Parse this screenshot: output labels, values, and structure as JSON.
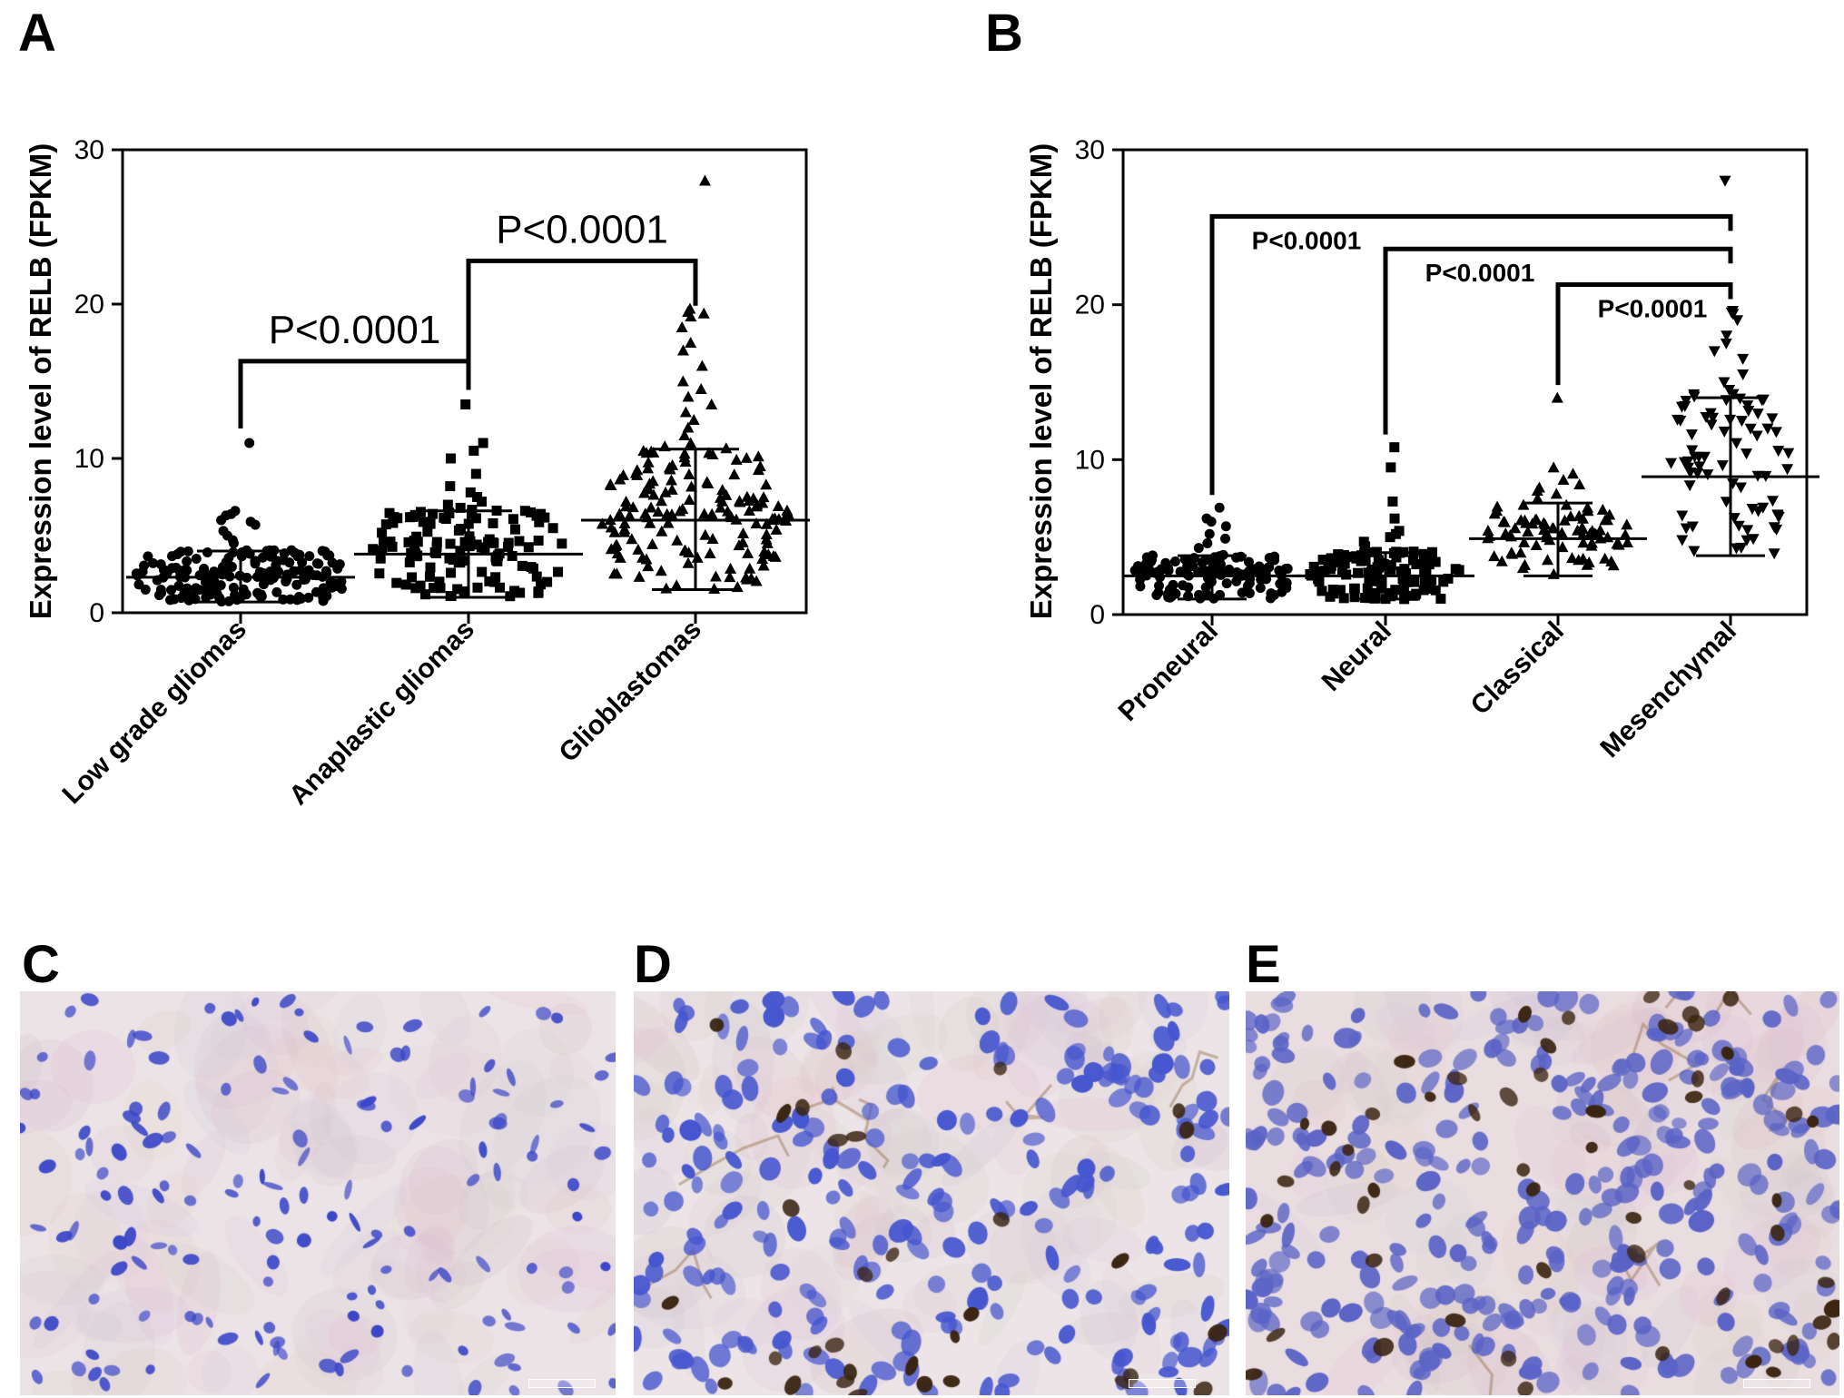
{
  "chart_data": [
    {
      "panel": "A",
      "type": "scatter",
      "ylabel": "Expression level of RELB (FPKM)",
      "ylim": [
        0,
        30
      ],
      "yticks": [
        "0",
        "10",
        "20",
        "30"
      ],
      "categories": [
        "Low grade gliomas",
        "Anaplastic gliomas",
        "Glioblastomas"
      ],
      "markers": [
        "circle",
        "square",
        "triangle-up"
      ],
      "series": [
        {
          "category": "Low grade gliomas",
          "mean": 2.3,
          "sd_low": 0.7,
          "sd_high": 4.0,
          "max": 11.0,
          "notable_points": [
            11.0,
            6.6,
            6.4,
            6.3,
            6.0,
            5.9,
            5.7,
            5.3,
            5.0,
            4.7,
            4.5
          ]
        },
        {
          "category": "Anaplastic gliomas",
          "mean": 3.8,
          "sd_low": 1.0,
          "sd_high": 6.6,
          "max": 13.5,
          "notable_points": [
            13.5,
            11.0,
            10.5,
            10.0,
            9.0,
            8.2,
            7.8,
            7.5,
            7.2,
            7.0,
            6.8,
            6.5
          ]
        },
        {
          "category": "Glioblastomas",
          "mean": 6.0,
          "sd_low": 1.5,
          "sd_high": 10.6,
          "max": 28.0,
          "notable_points": [
            28.0,
            19.7,
            19.5,
            19.4,
            19.2,
            18.5,
            17.5,
            17.0,
            16.0,
            15.0,
            14.5,
            14.0,
            13.5,
            13.0,
            12.5,
            12.0,
            11.5,
            11.0
          ]
        }
      ],
      "comparisons": [
        {
          "from": "Low grade gliomas",
          "to": "Anaplastic gliomas",
          "label": "P<0.0001",
          "level": 16.3
        },
        {
          "from": "Anaplastic gliomas",
          "to": "Glioblastomas",
          "label": "P<0.0001",
          "level": 22.8
        }
      ]
    },
    {
      "panel": "B",
      "type": "scatter",
      "ylabel": "Expression level of RELB (FPKM)",
      "ylim": [
        0,
        30
      ],
      "yticks": [
        "0",
        "10",
        "20",
        "30"
      ],
      "categories": [
        "Proneural",
        "Neural",
        "Classical",
        "Mesenchymal"
      ],
      "markers": [
        "circle",
        "square",
        "triangle-up",
        "triangle-down"
      ],
      "series": [
        {
          "category": "Proneural",
          "mean": 2.5,
          "sd_low": 1.0,
          "sd_high": 3.8,
          "max": 6.9,
          "notable_points": [
            6.9,
            6.2,
            6.0,
            5.7,
            5.2,
            4.9,
            4.6,
            4.3
          ]
        },
        {
          "category": "Neural",
          "mean": 2.5,
          "sd_low": 1.0,
          "sd_high": 4.0,
          "max": 10.8,
          "notable_points": [
            10.8,
            9.5,
            7.3,
            6.2,
            5.4,
            5.2,
            5.0,
            4.7,
            4.4
          ]
        },
        {
          "category": "Classical",
          "mean": 4.9,
          "sd_low": 2.5,
          "sd_high": 7.2,
          "max": 14.0,
          "notable_points": [
            14.0,
            9.5,
            9.1,
            8.7,
            8.4,
            8.2,
            8.0,
            7.8,
            7.5
          ]
        },
        {
          "category": "Mesenchymal",
          "mean": 8.9,
          "sd_low": 3.8,
          "sd_high": 14.0,
          "max": 28.0,
          "notable_points": [
            28.0,
            19.6,
            19.5,
            19.4,
            19.0,
            18.0,
            17.5,
            17.0,
            16.5,
            15.5,
            15.0,
            14.5,
            13.5,
            13.0,
            12.5,
            12.0
          ]
        }
      ],
      "comparisons": [
        {
          "from": "Proneural",
          "to": "Mesenchymal",
          "label": "P<0.0001",
          "level": 25.7
        },
        {
          "from": "Neural",
          "to": "Mesenchymal",
          "label": "P<0.0001",
          "level": 23.6
        },
        {
          "from": "Classical",
          "to": "Mesenchymal",
          "label": "P<0.0001",
          "level": 21.3
        }
      ]
    }
  ],
  "panels": {
    "a": "A",
    "b": "B",
    "c": "C",
    "d": "D",
    "e": "E"
  },
  "micrographs": [
    {
      "panel": "C",
      "stain": "hematoxylin + DAB",
      "brown_nuclei": "none",
      "colors": {
        "background": "#ece3e6",
        "nucleus": "#3b47c8",
        "positive": "#5a3418"
      }
    },
    {
      "panel": "D",
      "stain": "hematoxylin + DAB",
      "brown_nuclei": "moderate",
      "colors": {
        "background": "#ece4e6",
        "nucleus": "#4656cf",
        "positive": "#3a2412"
      }
    },
    {
      "panel": "E",
      "stain": "hematoxylin + DAB",
      "brown_nuclei": "many",
      "colors": {
        "background": "#e9dde0",
        "nucleus": "#5a63c6",
        "positive": "#3a230f"
      }
    }
  ]
}
